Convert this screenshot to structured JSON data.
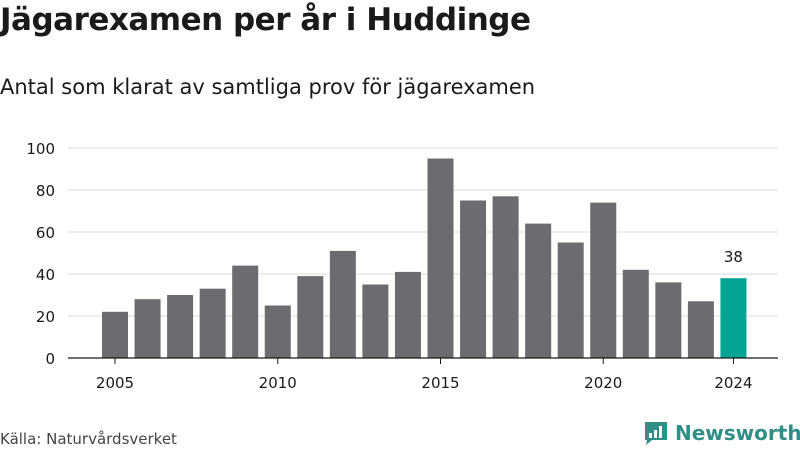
{
  "source": "Källa: Naturvårdsverket",
  "brand": {
    "name": "Newsworthy",
    "logo_icon": "newsworthy-logo-icon",
    "color": "#2f8f87"
  },
  "chart_data": {
    "type": "bar",
    "title": "Jägarexamen per år i Huddinge",
    "subtitle": "Antal som klarat av samtliga prov för jägarexamen",
    "xlabel": "",
    "ylabel": "",
    "categories": [
      2005,
      2006,
      2007,
      2008,
      2009,
      2010,
      2011,
      2012,
      2013,
      2014,
      2015,
      2016,
      2017,
      2018,
      2019,
      2020,
      2021,
      2022,
      2023,
      2024
    ],
    "values": [
      22,
      28,
      30,
      33,
      44,
      25,
      39,
      51,
      35,
      41,
      95,
      75,
      77,
      64,
      55,
      74,
      42,
      36,
      27,
      38
    ],
    "x_ticks": [
      2005,
      2010,
      2015,
      2020,
      2024
    ],
    "y_ticks": [
      0,
      20,
      40,
      60,
      80,
      100
    ],
    "ylim": [
      0,
      100
    ],
    "grid": true,
    "bar_color": "#6c6b70",
    "highlight_color": "#04a495",
    "highlight_category": 2024,
    "annotations": [
      {
        "category": 2024,
        "text": "38"
      }
    ]
  }
}
